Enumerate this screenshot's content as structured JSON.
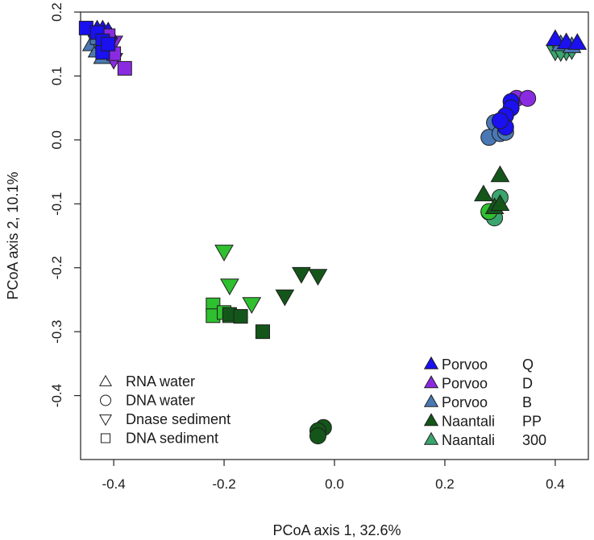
{
  "chart_data": {
    "type": "scatter",
    "title": "",
    "xlabel": "PCoA axis 1, 32.6%",
    "ylabel": "PCoA axis 2, 10.1%",
    "xlim": [
      -0.46,
      0.46
    ],
    "ylim": [
      -0.5,
      0.2
    ],
    "xticks": [
      -0.4,
      -0.2,
      0.0,
      0.2,
      0.4
    ],
    "xtick_labels": [
      "-0.4",
      "-0.2",
      "0.0",
      "0.2",
      "0.4"
    ],
    "yticks": [
      -0.4,
      -0.3,
      -0.2,
      -0.1,
      0.0,
      0.1,
      0.2
    ],
    "ytick_labels": [
      "-0.4",
      "-0.3",
      "-0.2",
      "-0.1",
      "0.0",
      "0.1",
      "0.2"
    ],
    "grid": false,
    "shape_legend": {
      "placement": "bottom-left",
      "entries": [
        {
          "shape": "triangle",
          "label": "RNA water"
        },
        {
          "shape": "circle",
          "label": "DNA water"
        },
        {
          "shape": "triangle-down",
          "label": "Dnase sediment"
        },
        {
          "shape": "square",
          "label": "DNA sediment"
        }
      ]
    },
    "color_legend": {
      "placement": "bottom-right",
      "entries": [
        {
          "site": "Porvoo",
          "code": "Q",
          "color": "#1a10f0"
        },
        {
          "site": "Porvoo",
          "code": "D",
          "color": "#8a2be2"
        },
        {
          "site": "Porvoo",
          "code": "B",
          "color": "#4a78b5"
        },
        {
          "site": "Naantali",
          "code": "PP",
          "color": "#14561a"
        },
        {
          "site": "Naantali",
          "code": "300",
          "color": "#3aa56e"
        }
      ]
    },
    "groups": [
      {
        "color": "#4a78b5",
        "shape": "triangle",
        "points": [
          [
            -0.44,
            0.15
          ],
          [
            -0.43,
            0.14
          ],
          [
            -0.42,
            0.13
          ]
        ]
      },
      {
        "color": "#8a2be2",
        "shape": "triangle-down",
        "points": [
          [
            -0.42,
            0.165
          ],
          [
            -0.4,
            0.152
          ],
          [
            -0.4,
            0.125
          ],
          [
            -0.41,
            0.148
          ]
        ]
      },
      {
        "color": "#4a78b5",
        "shape": "triangle-down",
        "points": [
          [
            -0.43,
            0.162
          ],
          [
            -0.42,
            0.142
          ],
          [
            -0.43,
            0.152
          ]
        ]
      },
      {
        "color": "#1a10f0",
        "shape": "triangle",
        "points": [
          [
            -0.43,
            0.173
          ],
          [
            -0.42,
            0.173
          ],
          [
            -0.41,
            0.17
          ]
        ]
      },
      {
        "color": "#8a2be2",
        "shape": "square",
        "points": [
          [
            -0.41,
            0.163
          ],
          [
            -0.38,
            0.112
          ],
          [
            -0.4,
            0.135
          ]
        ]
      },
      {
        "color": "#4a78b5",
        "shape": "square",
        "points": [
          [
            -0.43,
            0.16
          ],
          [
            -0.42,
            0.14
          ]
        ]
      },
      {
        "color": "#1a10f0",
        "shape": "square",
        "points": [
          [
            -0.45,
            0.175
          ],
          [
            -0.43,
            0.168
          ],
          [
            -0.42,
            0.155
          ],
          [
            -0.42,
            0.137
          ],
          [
            -0.41,
            0.15
          ]
        ]
      },
      {
        "color": "#3aa56e",
        "shape": "triangle-down",
        "points": [
          [
            0.4,
            0.138
          ],
          [
            0.42,
            0.138
          ],
          [
            0.43,
            0.14
          ],
          [
            0.41,
            0.137
          ]
        ]
      },
      {
        "color": "#4a78b5",
        "shape": "triangle",
        "points": [
          [
            0.41,
            0.15
          ],
          [
            0.43,
            0.147
          ]
        ]
      },
      {
        "color": "#1a10f0",
        "shape": "triangle",
        "points": [
          [
            0.4,
            0.158
          ],
          [
            0.42,
            0.153
          ],
          [
            0.44,
            0.152
          ]
        ]
      },
      {
        "color": "#4a78b5",
        "shape": "circle",
        "points": [
          [
            0.28,
            0.004
          ],
          [
            0.29,
            0.027
          ],
          [
            0.3,
            0.01
          ],
          [
            0.31,
            0.012
          ]
        ]
      },
      {
        "color": "#8a2be2",
        "shape": "circle",
        "points": [
          [
            0.33,
            0.065
          ],
          [
            0.35,
            0.065
          ]
        ]
      },
      {
        "color": "#1a10f0",
        "shape": "circle",
        "points": [
          [
            0.32,
            0.06
          ],
          [
            0.32,
            0.05
          ],
          [
            0.31,
            0.038
          ],
          [
            0.31,
            0.02
          ],
          [
            0.3,
            0.03
          ]
        ]
      },
      {
        "color": "#3aa56e",
        "shape": "circle",
        "points": [
          [
            0.28,
            -0.113
          ],
          [
            0.29,
            -0.122
          ],
          [
            0.3,
            -0.09
          ]
        ]
      },
      {
        "color": "#2fc02f",
        "shape": "circle",
        "points": [
          [
            0.28,
            -0.112
          ]
        ]
      },
      {
        "color": "#14561a",
        "shape": "triangle",
        "points": [
          [
            0.27,
            -0.085
          ],
          [
            0.29,
            -0.105
          ],
          [
            0.3,
            -0.1
          ],
          [
            0.3,
            -0.055
          ]
        ]
      },
      {
        "color": "#2fc02f",
        "shape": "triangle-down",
        "points": [
          [
            -0.2,
            -0.175
          ],
          [
            -0.19,
            -0.228
          ],
          [
            -0.15,
            -0.257
          ]
        ]
      },
      {
        "color": "#14561a",
        "shape": "triangle-down",
        "points": [
          [
            -0.09,
            -0.245
          ],
          [
            -0.06,
            -0.21
          ],
          [
            -0.03,
            -0.213
          ]
        ]
      },
      {
        "color": "#2fc02f",
        "shape": "square",
        "points": [
          [
            -0.22,
            -0.258
          ],
          [
            -0.22,
            -0.275
          ],
          [
            -0.2,
            -0.27
          ],
          [
            -0.19,
            -0.275
          ]
        ]
      },
      {
        "color": "#14561a",
        "shape": "square",
        "points": [
          [
            -0.19,
            -0.273
          ],
          [
            -0.17,
            -0.276
          ],
          [
            -0.13,
            -0.3
          ]
        ]
      },
      {
        "color": "#14561a",
        "shape": "circle",
        "points": [
          [
            -0.02,
            -0.45
          ],
          [
            -0.03,
            -0.455
          ],
          [
            -0.03,
            -0.463
          ]
        ]
      }
    ]
  }
}
